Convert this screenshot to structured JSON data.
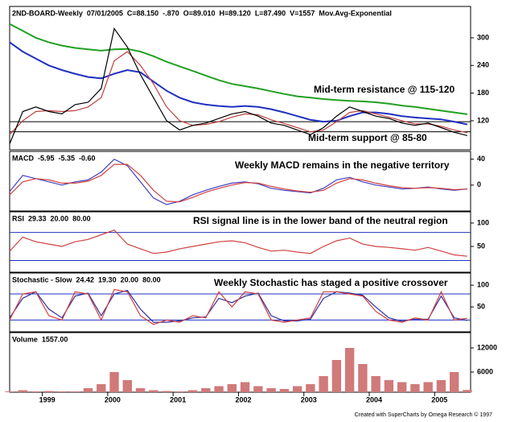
{
  "chart_data": [
    {
      "type": "line",
      "legend": [
        {
          "text": "2ND-BOARD-Weekly",
          "color": "#000000"
        },
        {
          "text": "07/01/2005",
          "color": "#000000"
        },
        {
          "text": "C=88.150",
          "color": "#000000"
        },
        {
          "text": "-.870",
          "color": "#d02020"
        },
        {
          "text": "O=89.010",
          "color": "#000000"
        },
        {
          "text": "H=89.120",
          "color": "#000000"
        },
        {
          "text": "L=87.490",
          "color": "#000000"
        },
        {
          "text": "V=1557",
          "color": "#000000"
        },
        {
          "text": "Mov.Avg-Exponential",
          "color": "#000000"
        }
      ],
      "annotations": [
        "Mid-term resistance @ 115-120",
        "Mid-term support @ 85-80"
      ],
      "ylim": [
        57,
        368
      ],
      "yticks": [
        120,
        180,
        240,
        300
      ],
      "levels": [
        118,
        96
      ],
      "series": [
        {
          "color": "#22a022",
          "values": [
            330,
            315,
            300,
            290,
            283,
            278,
            275,
            272,
            275,
            276,
            270,
            260,
            248,
            238,
            228,
            218,
            208,
            200,
            195,
            190,
            184,
            178,
            173,
            170,
            167,
            165,
            163,
            162,
            160,
            157,
            153,
            150,
            146,
            142,
            138,
            134
          ]
        },
        {
          "color": "#2030c0",
          "values": [
            290,
            270,
            255,
            240,
            230,
            222,
            215,
            212,
            222,
            230,
            225,
            205,
            185,
            170,
            160,
            155,
            152,
            150,
            152,
            150,
            145,
            138,
            130,
            122,
            118,
            120,
            130,
            138,
            138,
            135,
            130,
            127,
            125,
            123,
            118,
            112
          ]
        },
        {
          "color": "#c04040",
          "values": [
            90,
            120,
            140,
            142,
            140,
            142,
            150,
            170,
            250,
            270,
            240,
            200,
            150,
            120,
            110,
            112,
            118,
            128,
            135,
            133,
            122,
            114,
            105,
            96,
            100,
            118,
            138,
            142,
            135,
            128,
            120,
            113,
            113,
            108,
            100,
            94
          ]
        },
        {
          "color": "#000000",
          "values": [
            70,
            140,
            150,
            140,
            135,
            155,
            160,
            190,
            320,
            280,
            220,
            170,
            120,
            100,
            110,
            115,
            125,
            135,
            140,
            130,
            115,
            110,
            100,
            90,
            105,
            130,
            150,
            140,
            130,
            125,
            115,
            110,
            115,
            105,
            95,
            88
          ]
        }
      ]
    },
    {
      "type": "line",
      "legend": [
        {
          "text": "MACD",
          "color": "#000000"
        },
        {
          "text": "-5.95",
          "color": "#d02020"
        },
        {
          "text": "-5.35",
          "color": "#2030c0"
        },
        {
          "text": "-0.60",
          "color": "#2030c0"
        }
      ],
      "annotations": [
        "Weekly MACD remains in the negative territory"
      ],
      "ylim": [
        -40,
        52
      ],
      "yticks": [
        0,
        40
      ],
      "series": [
        {
          "color": "#4040c0",
          "values": [
            -10,
            15,
            10,
            5,
            0,
            5,
            8,
            20,
            40,
            30,
            5,
            -20,
            -30,
            -25,
            -15,
            -8,
            -2,
            3,
            5,
            2,
            -5,
            -8,
            -10,
            -12,
            -5,
            8,
            12,
            5,
            0,
            -3,
            -6,
            -5,
            -3,
            -6,
            -8,
            -6
          ]
        },
        {
          "color": "#d04040",
          "values": [
            -15,
            5,
            10,
            8,
            3,
            3,
            6,
            15,
            32,
            32,
            15,
            -8,
            -25,
            -26,
            -19,
            -11,
            -5,
            0,
            4,
            3,
            -2,
            -6,
            -9,
            -11,
            -8,
            3,
            10,
            8,
            3,
            -1,
            -4,
            -5,
            -4,
            -5,
            -7,
            -6
          ]
        }
      ]
    },
    {
      "type": "line",
      "legend": [
        {
          "text": "RSI",
          "color": "#000000"
        },
        {
          "text": "29.33",
          "color": "#d02020"
        }
      ],
      "annotations": [
        "RSI signal line is in the lower band of the neutral region"
      ],
      "ylim": [
        -5,
        124
      ],
      "yticks": [
        50,
        100
      ],
      "levels": [
        {
          "value": 20,
          "label": "20.00"
        },
        {
          "value": 80,
          "label": "80.00"
        }
      ],
      "level_color": "#2030c0",
      "series": [
        {
          "color": "#d04040",
          "values": [
            40,
            70,
            60,
            55,
            50,
            60,
            65,
            75,
            85,
            55,
            45,
            35,
            38,
            45,
            50,
            55,
            60,
            62,
            58,
            48,
            40,
            42,
            38,
            35,
            50,
            62,
            68,
            55,
            50,
            48,
            45,
            42,
            48,
            40,
            32,
            29
          ]
        }
      ]
    },
    {
      "type": "line",
      "legend": [
        {
          "text": "Stochastic - Slow",
          "color": "#000000"
        },
        {
          "text": "24.42",
          "color": "#d02020"
        },
        {
          "text": "19.30",
          "color": "#2030c0"
        }
      ],
      "annotations": [
        "Weekly Stochastic has staged a positive crossover"
      ],
      "ylim": [
        -7,
        128
      ],
      "yticks": [
        50,
        100
      ],
      "levels": [
        {
          "value": 20,
          "label": "20.00"
        },
        {
          "value": 80,
          "label": "80.00"
        }
      ],
      "level_color": "#2030c0",
      "series": [
        {
          "color": "#3030a0",
          "values": [
            25,
            70,
            85,
            45,
            25,
            75,
            82,
            30,
            80,
            88,
            45,
            15,
            15,
            18,
            25,
            27,
            70,
            60,
            75,
            82,
            30,
            18,
            18,
            22,
            70,
            85,
            82,
            77,
            50,
            25,
            17,
            22,
            22,
            75,
            25,
            19
          ]
        },
        {
          "color": "#d04040",
          "values": [
            20,
            80,
            85,
            30,
            20,
            85,
            80,
            20,
            90,
            85,
            30,
            10,
            20,
            15,
            30,
            25,
            85,
            50,
            85,
            80,
            20,
            15,
            20,
            25,
            85,
            85,
            80,
            75,
            40,
            20,
            15,
            25,
            20,
            85,
            20,
            24
          ]
        }
      ]
    },
    {
      "type": "bar",
      "legend": [
        {
          "text": "Volume",
          "color": "#000000"
        },
        {
          "text": "1557.00",
          "color": "#d02020"
        }
      ],
      "ylim": [
        1000,
        15800
      ],
      "yticks": [
        6000,
        12000
      ],
      "color": "#d07a7a",
      "x": [
        1998.5,
        1998.7,
        1998.9,
        1999.1,
        1999.3,
        1999.5,
        1999.7,
        1999.9,
        2000.1,
        2000.3,
        2000.5,
        2000.7,
        2000.9,
        2001.1,
        2001.3,
        2001.5,
        2001.7,
        2001.9,
        2002.1,
        2002.3,
        2002.5,
        2002.7,
        2002.9,
        2003.1,
        2003.3,
        2003.5,
        2003.7,
        2003.9,
        2004.1,
        2004.3,
        2004.5,
        2004.7,
        2004.9,
        2005.1,
        2005.3,
        2005.5
      ],
      "xlim": [
        1998.5,
        2005.55
      ],
      "xticks": [
        1999,
        2000,
        2001,
        2002,
        2003,
        2004,
        2005
      ],
      "values": [
        1200,
        1500,
        1200,
        1300,
        1200,
        1200,
        2000,
        3000,
        6000,
        4000,
        2000,
        1500,
        1300,
        1200,
        1500,
        2000,
        2500,
        3000,
        3500,
        2500,
        2000,
        1800,
        2500,
        3000,
        5000,
        9000,
        12000,
        8000,
        5000,
        4000,
        3500,
        3000,
        3500,
        4000,
        6000,
        1557
      ]
    }
  ],
  "footer": "Created with SuperCharts by Omega Research © 1997"
}
